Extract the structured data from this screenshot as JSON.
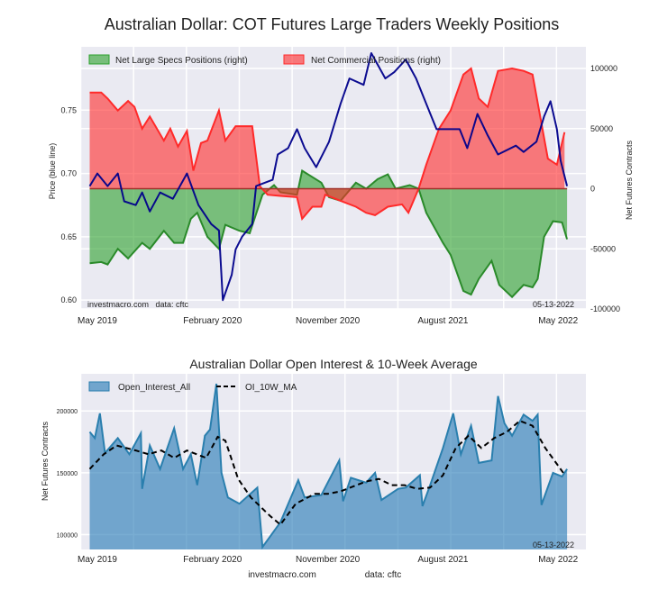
{
  "title": "Australian Dollar: COT Futures Large Traders Weekly Positions",
  "chart_data": [
    {
      "type": "line+area",
      "title": "Australian Dollar: COT Futures Large Traders Weekly Positions",
      "x_unit": "months since 2019-05",
      "xticks": [
        {
          "m": 0,
          "label": "May 2019"
        },
        {
          "m": 9,
          "label": "February 2020"
        },
        {
          "m": 18,
          "label": "November 2020"
        },
        {
          "m": 27,
          "label": "August 2021"
        },
        {
          "m": 36,
          "label": "May 2022"
        }
      ],
      "ylabel": "Price (blue line)",
      "ylim": [
        0.593,
        0.8
      ],
      "yticks": [
        "0.60",
        "0.65",
        "0.70",
        "0.75"
      ],
      "y2label": "Net Futures Contracts",
      "y2lim": [
        -100000,
        118000
      ],
      "y2ticks": [
        "-100000",
        "-50000",
        "0",
        "50000",
        "100000"
      ],
      "legend": [
        "Net Large Specs Positions (right)",
        "Net Commercial Positions (right)"
      ],
      "legend_position": "top-left",
      "annotation_left": "investmacro.com   data: cftc",
      "annotation_right": "05-13-2022",
      "colors": {
        "specs": "#2ca02c",
        "commercial": "#ff2a2a",
        "price": "#00008b"
      },
      "price": {
        "x": [
          -0.6,
          0,
          0.8,
          1.6,
          2.1,
          3.0,
          3.5,
          4.1,
          4.9,
          5.9,
          7.0,
          7.9,
          8.9,
          9.5,
          9.8,
          10.5,
          10.8,
          11.3,
          12.1,
          12.4,
          13.7,
          14.1,
          14.9,
          15.6,
          16.2,
          17.1,
          18.1,
          19.0,
          19.7,
          20.8,
          21.4,
          22.5,
          23.2,
          24.1,
          24.9,
          25.7,
          26.5,
          27.3,
          28.3,
          28.9,
          29.7,
          30.5,
          31.3,
          32.7,
          33.3,
          34.3,
          34.9,
          35.4,
          35.9,
          36.2,
          36.7
        ],
        "y": [
          0.69,
          0.7,
          0.69,
          0.7,
          0.678,
          0.675,
          0.685,
          0.67,
          0.685,
          0.68,
          0.7,
          0.675,
          0.66,
          0.655,
          0.6,
          0.62,
          0.64,
          0.65,
          0.66,
          0.69,
          0.695,
          0.715,
          0.72,
          0.735,
          0.72,
          0.705,
          0.725,
          0.755,
          0.775,
          0.77,
          0.795,
          0.775,
          0.78,
          0.79,
          0.775,
          0.755,
          0.735,
          0.735,
          0.735,
          0.72,
          0.747,
          0.73,
          0.715,
          0.722,
          0.717,
          0.725,
          0.745,
          0.757,
          0.735,
          0.71,
          0.69
        ]
      },
      "series": [
        {
          "name": "Net Large Specs Positions (right)",
          "x": [
            -0.6,
            0.3,
            0.8,
            1.6,
            2.4,
            3.5,
            4.1,
            5.2,
            6.0,
            6.7,
            7.3,
            7.8,
            8.6,
            9.5,
            10.0,
            11.1,
            11.9,
            12.9,
            13.8,
            14.3,
            15.6,
            16.0,
            17.5,
            18.1,
            19.0,
            20.2,
            21.0,
            21.9,
            22.7,
            23.3,
            24.4,
            25.1,
            25.7,
            27.0,
            27.6,
            28.6,
            29.2,
            29.8,
            30.8,
            31.4,
            32.4,
            33.3,
            34.0,
            34.4,
            34.9,
            35.6,
            36.3,
            36.7
          ],
          "y": [
            -62000,
            -61000,
            -63000,
            -50000,
            -58000,
            -45000,
            -50000,
            -35000,
            -45000,
            -45000,
            -25000,
            -20000,
            -40000,
            -50000,
            -30000,
            -35000,
            -37000,
            -5000,
            3000,
            -3000,
            -5000,
            15000,
            5000,
            -7000,
            -10000,
            5000,
            0,
            8000,
            12000,
            0,
            3000,
            0,
            -20000,
            -45000,
            -55000,
            -85000,
            -88000,
            -75000,
            -60000,
            -80000,
            -90000,
            -80000,
            -82000,
            -75000,
            -40000,
            -27000,
            -28000,
            -42000
          ]
        },
        {
          "name": "Net Commercial Positions (right)",
          "x": [
            -0.6,
            0.3,
            0.8,
            1.6,
            2.4,
            2.9,
            3.5,
            4.1,
            5.2,
            5.7,
            6.3,
            7.0,
            7.5,
            8.1,
            8.6,
            9.5,
            10.0,
            10.8,
            11.3,
            12.1,
            12.7,
            13.3,
            14.3,
            15.6,
            16.0,
            16.8,
            17.5,
            17.8,
            19.0,
            20.2,
            21.0,
            21.7,
            22.7,
            23.8,
            24.3,
            25.1,
            25.7,
            26.7,
            27.6,
            28.6,
            29.2,
            29.8,
            30.5,
            31.3,
            32.4,
            33.3,
            34.0,
            34.6,
            35.2,
            35.9,
            36.5
          ],
          "y": [
            80000,
            80000,
            75000,
            65000,
            73000,
            68000,
            50000,
            60000,
            40000,
            50000,
            35000,
            48000,
            15000,
            38000,
            40000,
            65000,
            40000,
            52000,
            52000,
            52000,
            2000,
            -5000,
            -6000,
            -7000,
            -25000,
            -15000,
            -15000,
            -5000,
            -10000,
            -15000,
            -20000,
            -22000,
            -15000,
            -13000,
            -20000,
            0,
            20000,
            50000,
            65000,
            95000,
            100000,
            75000,
            68000,
            98000,
            100000,
            98000,
            95000,
            60000,
            25000,
            20000,
            47000
          ]
        }
      ]
    },
    {
      "type": "area+line",
      "title": "Australian Dollar Open Interest & 10-Week Average",
      "x_unit": "months since 2019-05",
      "xticks": [
        {
          "m": 0,
          "label": "May 2019"
        },
        {
          "m": 9,
          "label": "February 2020"
        },
        {
          "m": 18,
          "label": "November 2020"
        },
        {
          "m": 27,
          "label": "August 2021"
        },
        {
          "m": 36,
          "label": "May 2022"
        }
      ],
      "ylabel": "Net Futures Contracts",
      "ylim": [
        88000,
        230000
      ],
      "yticks": [
        "100000",
        "150000",
        "200000"
      ],
      "legend": [
        "Open_Interest_All",
        "OI_10W_MA"
      ],
      "legend_position": "top-left",
      "annotation_right": "05-13-2022",
      "colors": {
        "oi": "#1f77b4",
        "ma": "#000000"
      },
      "series": [
        {
          "name": "Open_Interest_All",
          "x": [
            -0.6,
            -0.2,
            0.2,
            0.6,
            1.6,
            2.5,
            3.4,
            3.5,
            4.1,
            4.9,
            6.0,
            6.7,
            7.3,
            7.8,
            8.4,
            8.8,
            9.3,
            9.7,
            10.2,
            11.1,
            12.5,
            12.9,
            14.3,
            15.7,
            16.2,
            17.5,
            18.9,
            19.2,
            19.8,
            21.0,
            21.7,
            22.2,
            23.5,
            24.1,
            25.2,
            25.4,
            26.0,
            27.0,
            27.8,
            28.4,
            29.2,
            29.8,
            30.8,
            31.3,
            31.8,
            32.4,
            33.3,
            34.0,
            34.4,
            34.7,
            35.6,
            36.3,
            36.7
          ],
          "y": [
            183000,
            178000,
            198000,
            166000,
            178000,
            165000,
            182000,
            137000,
            172000,
            153000,
            186000,
            153000,
            165000,
            140000,
            180000,
            185000,
            222000,
            150000,
            130000,
            125000,
            138000,
            90000,
            110000,
            144000,
            130000,
            132000,
            160000,
            127000,
            146000,
            142000,
            150000,
            128000,
            137000,
            138000,
            148000,
            123000,
            140000,
            170000,
            198000,
            165000,
            188000,
            158000,
            160000,
            212000,
            190000,
            180000,
            197000,
            192000,
            197000,
            124000,
            150000,
            147000,
            153000
          ]
        },
        {
          "name": "OI_10W_MA",
          "x": [
            -0.6,
            0.5,
            1.5,
            3.0,
            4.0,
            5.0,
            6.0,
            7.0,
            8.5,
            9.4,
            10.0,
            11.0,
            12.0,
            13.5,
            14.3,
            15.5,
            17.0,
            18.0,
            19.0,
            21.0,
            22.0,
            23.0,
            24.0,
            25.0,
            26.0,
            27.0,
            28.0,
            29.0,
            30.0,
            31.0,
            32.0,
            33.0,
            34.0,
            35.0,
            36.4
          ],
          "y": [
            153000,
            165000,
            172000,
            168000,
            165000,
            168000,
            162000,
            168000,
            162000,
            179000,
            176000,
            145000,
            130000,
            115000,
            108000,
            125000,
            133000,
            133000,
            135000,
            143000,
            145000,
            140000,
            140000,
            137000,
            138000,
            148000,
            170000,
            180000,
            170000,
            178000,
            183000,
            192000,
            188000,
            170000,
            150000
          ]
        }
      ]
    }
  ],
  "subtitle": "Australian Dollar Open Interest & 10-Week Average",
  "footer": {
    "site": "investmacro.com",
    "data": "data: cftc"
  }
}
